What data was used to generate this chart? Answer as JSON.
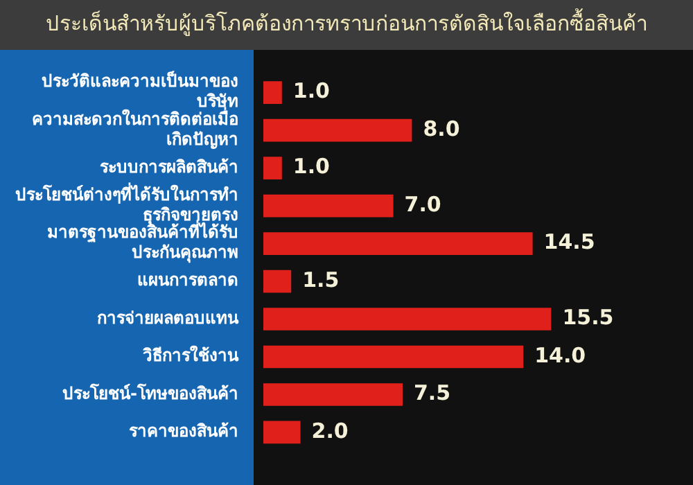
{
  "chart_data": {
    "type": "bar",
    "orientation": "horizontal",
    "title": "ประเด็นสำหรับผู้บริโภคต้องการทราบก่อนการตัดสินใจเลือกซื้อสินค้า",
    "categories": [
      "ประวัติและความเป็นมาของบริษัท",
      "ความสะดวกในการติดต่อเมื่อเกิดปัญหา",
      "ระบบการผลิตสินค้า",
      "ประโยชน์ต่างๆที่ได้รับในการทำธุรกิจขายตรง",
      "มาตรฐานของสินค้าที่ได้รับประกันคุณภาพ",
      "แผนการตลาด",
      "การจ่ายผลตอบแทน",
      "วิธีการใช้งาน",
      "ประโยชน์-โทษของสินค้า",
      "ราคาของสินค้า"
    ],
    "values": [
      1.0,
      8.0,
      1.0,
      7.0,
      14.5,
      1.5,
      15.5,
      14.0,
      7.5,
      2.0
    ],
    "value_labels": [
      "1.0",
      "8.0",
      "1.0",
      "7.0",
      "14.5",
      "1.5",
      "15.5",
      "14.0",
      "7.5",
      "2.0"
    ],
    "color": "#e0201b",
    "legend": false,
    "tick_labels": "y"
  }
}
